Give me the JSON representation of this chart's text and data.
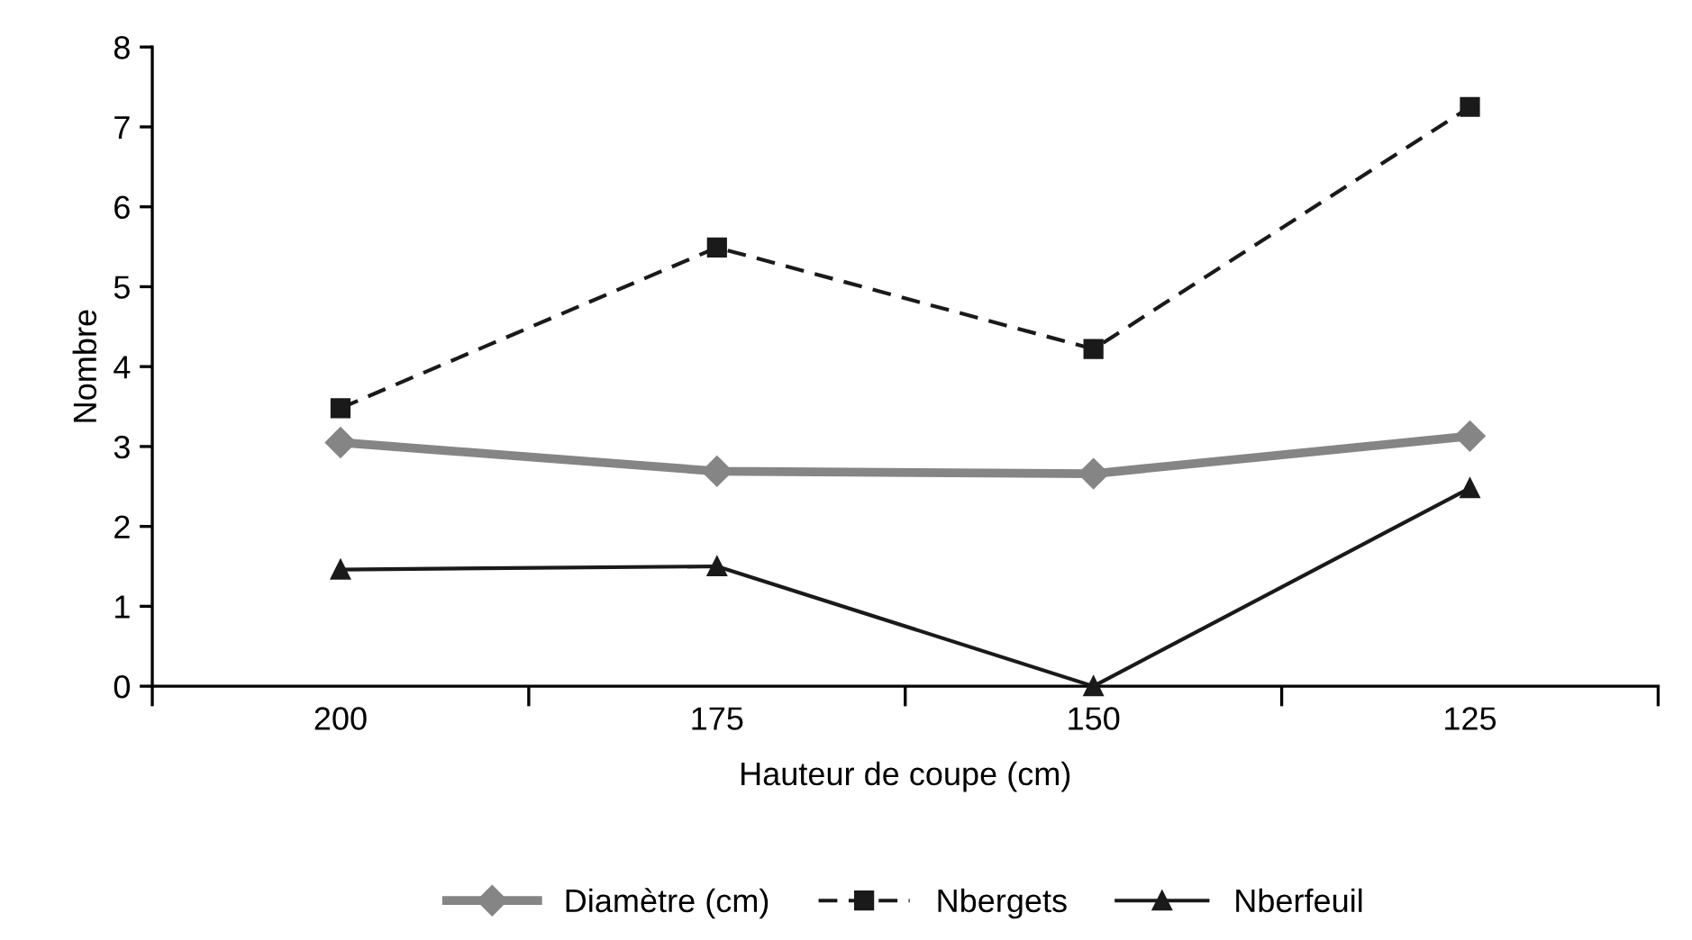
{
  "chart_data": {
    "type": "line",
    "xlabel": "Hauteur de coupe (cm)",
    "ylabel": "Nombre",
    "categories": [
      "200",
      "175",
      "150",
      "125"
    ],
    "series": [
      {
        "name": "Diamètre (cm)",
        "color": "#858585",
        "marker": "diamond",
        "line_style": "solid",
        "values": [
          3.05,
          2.69,
          2.66,
          3.13
        ]
      },
      {
        "name": "Nbergets",
        "color": "#1a1a1a",
        "marker": "square",
        "line_style": "dashed",
        "values": [
          3.48,
          5.49,
          4.22,
          7.25
        ]
      },
      {
        "name": "Nberfeuil",
        "color": "#1a1a1a",
        "marker": "triangle",
        "line_style": "solid",
        "values": [
          1.46,
          1.5,
          0,
          2.48
        ]
      }
    ],
    "ylim": [
      0,
      8
    ],
    "yticks": [
      0,
      1,
      2,
      3,
      4,
      5,
      6,
      7,
      8
    ],
    "grid": false,
    "legend": "bottom"
  }
}
